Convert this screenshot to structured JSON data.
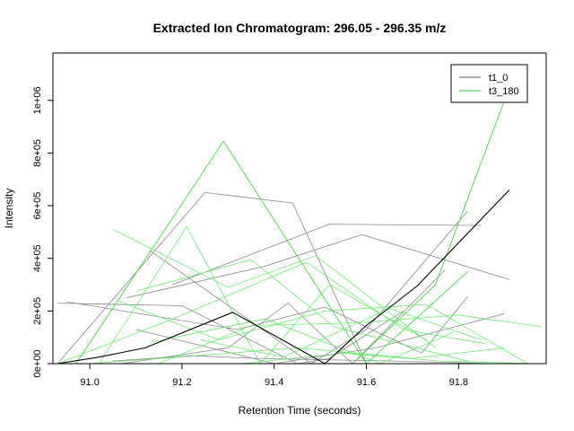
{
  "chart_data": {
    "type": "line",
    "title": "Extracted Ion Chromatogram: 296.05 - 296.35 m/z",
    "xlabel": "Retention Time (seconds)",
    "ylabel": "Intensity",
    "xlim": [
      90.92,
      91.99
    ],
    "ylim": [
      0,
      1180000
    ],
    "x_ticks": [
      91.0,
      91.2,
      91.4,
      91.6,
      91.8
    ],
    "x_tick_labels": [
      "91.0",
      "91.2",
      "91.4",
      "91.6",
      "91.8"
    ],
    "y_ticks": [
      0,
      200000,
      400000,
      600000,
      800000,
      1000000
    ],
    "y_tick_labels": [
      "0e+00",
      "2e+05",
      "4e+05",
      "6e+05",
      "8e+05",
      "1e+06"
    ],
    "grid": false,
    "legend_position": "top-right",
    "legend": [
      {
        "label": "t1_0",
        "color": "#555555"
      },
      {
        "label": "t3_180",
        "color": "#33cc33"
      }
    ],
    "series": [
      {
        "name": "t1_0",
        "role": "main",
        "color": "#000000",
        "x": [
          90.93,
          91.02,
          91.12,
          91.31,
          91.51,
          91.6,
          91.71,
          91.91
        ],
        "y": [
          0,
          25000,
          60000,
          195000,
          0,
          145000,
          295000,
          660000
        ]
      },
      {
        "group": "t1_0",
        "color": "#888888",
        "x": [
          90.93,
          91.25,
          91.44,
          91.6,
          91.71
        ],
        "y": [
          0,
          650000,
          610000,
          0,
          0
        ]
      },
      {
        "group": "t1_0",
        "color": "#888888",
        "x": [
          91.18,
          91.52,
          91.85
        ],
        "y": [
          300000,
          530000,
          525000
        ]
      },
      {
        "group": "t1_0",
        "color": "#888888",
        "x": [
          91.08,
          91.38,
          91.59,
          91.91
        ],
        "y": [
          250000,
          370000,
          490000,
          320000
        ]
      },
      {
        "group": "t1_0",
        "color": "#888888",
        "x": [
          91.13,
          91.48,
          91.6,
          91.82
        ],
        "y": [
          430000,
          0,
          130000,
          580000
        ]
      },
      {
        "group": "t1_0",
        "color": "#888888",
        "x": [
          90.93,
          91.2,
          91.45,
          91.52,
          91.68
        ],
        "y": [
          230000,
          220000,
          0,
          20000,
          200000
        ]
      },
      {
        "group": "t1_0",
        "color": "#888888",
        "x": [
          91.07,
          91.3,
          91.43,
          91.57,
          91.77
        ],
        "y": [
          0,
          60000,
          230000,
          0,
          355000
        ]
      },
      {
        "group": "t1_0",
        "color": "#888888",
        "x": [
          90.95,
          91.32,
          91.51,
          91.72,
          91.82
        ],
        "y": [
          235000,
          130000,
          215000,
          40000,
          255000
        ]
      },
      {
        "group": "t1_0",
        "color": "#888888",
        "x": [
          91.1,
          91.4,
          91.62,
          91.9
        ],
        "y": [
          130000,
          0,
          60000,
          190000
        ]
      },
      {
        "group": "t1_0",
        "color": "#888888",
        "x": [
          91.05,
          91.22,
          91.36,
          91.66,
          91.87
        ],
        "y": [
          10000,
          30000,
          20000,
          10000,
          0
        ]
      },
      {
        "group": "t3_180",
        "color": "#22dd22",
        "x": [
          90.97,
          91.29,
          91.6,
          91.82
        ],
        "y": [
          0,
          845000,
          0,
          350000
        ]
      },
      {
        "group": "t3_180",
        "color": "#22dd22",
        "x": [
          91.57,
          91.75,
          91.91
        ],
        "y": [
          0,
          300000,
          1050000
        ]
      },
      {
        "group": "t3_180",
        "color": "#66ee66",
        "x": [
          91.05,
          91.3,
          91.49,
          91.75
        ],
        "y": [
          510000,
          290000,
          410000,
          60000
        ]
      },
      {
        "group": "t3_180",
        "color": "#66ee66",
        "x": [
          91.02,
          91.21,
          91.37,
          91.52,
          91.73
        ],
        "y": [
          0,
          520000,
          0,
          300000,
          90000
        ]
      },
      {
        "group": "t3_180",
        "color": "#66ee66",
        "x": [
          91.1,
          91.35,
          91.53,
          91.84
        ],
        "y": [
          275000,
          395000,
          140000,
          0
        ]
      },
      {
        "group": "t3_180",
        "color": "#66ee66",
        "x": [
          90.93,
          91.18,
          91.47,
          91.68,
          91.86
        ],
        "y": [
          0,
          170000,
          385000,
          130000,
          75000
        ]
      },
      {
        "group": "t3_180",
        "color": "#66ee66",
        "x": [
          91.15,
          91.35,
          91.58,
          91.8,
          91.98
        ],
        "y": [
          0,
          145000,
          155000,
          185000,
          140000
        ]
      },
      {
        "group": "t3_180",
        "color": "#66ee66",
        "x": [
          91.06,
          91.28,
          91.51,
          91.73,
          91.95
        ],
        "y": [
          240000,
          90000,
          200000,
          225000,
          0
        ]
      },
      {
        "group": "t3_180",
        "color": "#66ee66",
        "x": [
          91.13,
          91.38,
          91.63,
          91.79
        ],
        "y": [
          80000,
          170000,
          0,
          120000
        ]
      },
      {
        "group": "t3_180",
        "color": "#66ee66",
        "x": [
          91.0,
          91.23,
          91.45,
          91.7,
          91.9
        ],
        "y": [
          0,
          30000,
          60000,
          20000,
          60000
        ]
      },
      {
        "group": "t3_180",
        "color": "#66ee66",
        "x": [
          91.24,
          91.42,
          91.65,
          91.85
        ],
        "y": [
          90000,
          25000,
          210000,
          90000
        ]
      },
      {
        "group": "t3_180",
        "color": "#66ee66",
        "x": [
          91.33,
          91.55,
          91.76,
          91.96
        ],
        "y": [
          0,
          40000,
          10000,
          0
        ]
      }
    ]
  }
}
